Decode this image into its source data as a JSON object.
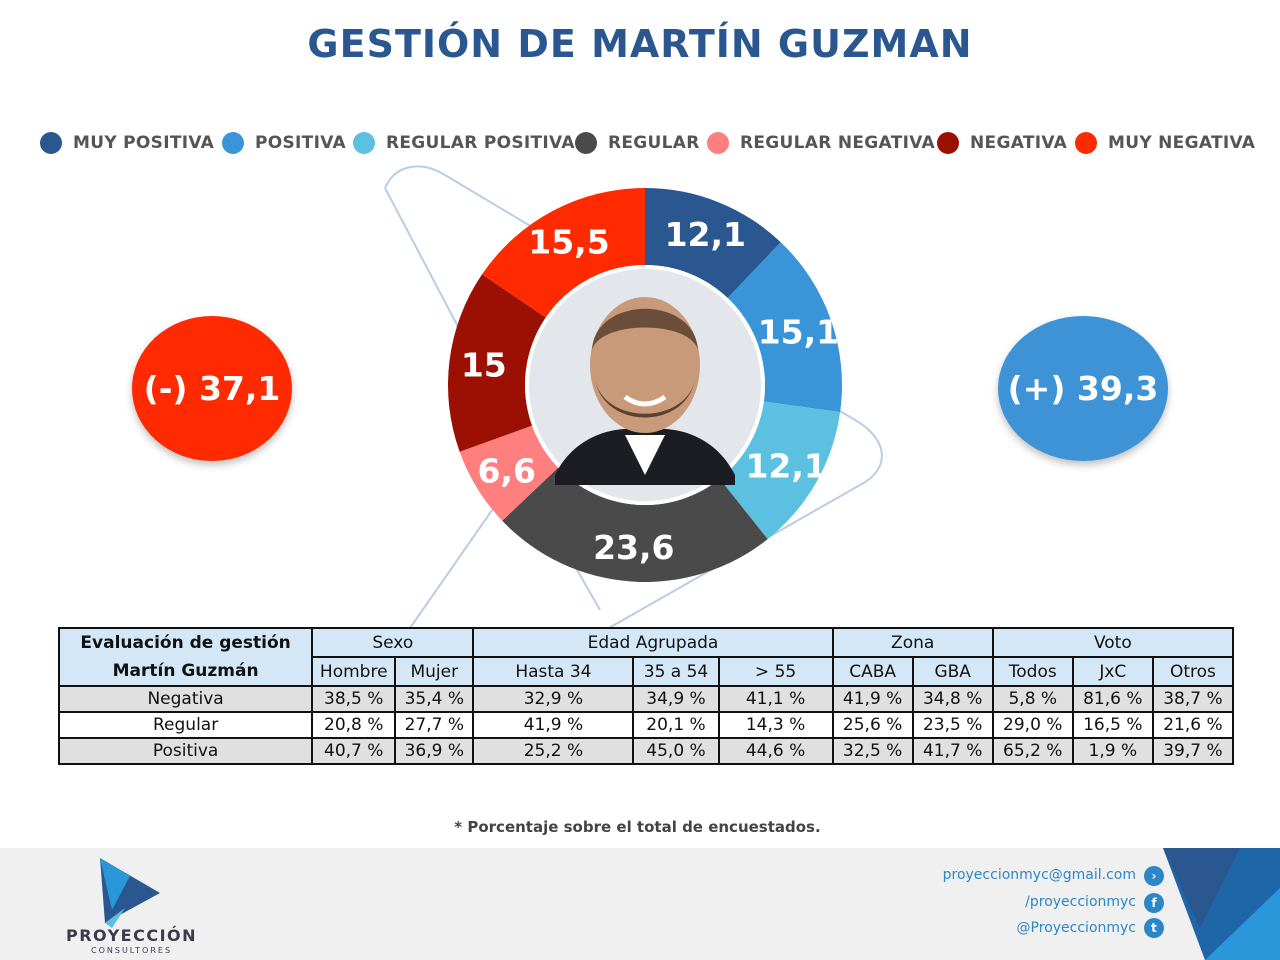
{
  "title": "GESTIÓN DE MARTÍN GUZMAN",
  "legend": [
    {
      "label": "MUY POSITIVA",
      "color": "#2a5790"
    },
    {
      "label": "POSITIVA",
      "color": "#3a95d8"
    },
    {
      "label": "REGULAR POSITIVA",
      "color": "#5cc0e0"
    },
    {
      "label": "REGULAR",
      "color": "#4a4a4a"
    },
    {
      "label": "REGULAR NEGATIVA",
      "color": "#ff7f7f"
    },
    {
      "label": "NEGATIVA",
      "color": "#9c1003"
    },
    {
      "label": "MUY NEGATIVA",
      "color": "#ff2a00"
    }
  ],
  "summary": {
    "negative_label": "(-) 37,1",
    "positive_label": "(+) 39,3"
  },
  "chart_data": {
    "type": "pie",
    "variant": "donut",
    "center_image": "portrait-photo",
    "categories": [
      "MUY POSITIVA",
      "POSITIVA",
      "REGULAR POSITIVA",
      "REGULAR",
      "REGULAR NEGATIVA",
      "NEGATIVA",
      "MUY NEGATIVA"
    ],
    "values": [
      12.1,
      15.1,
      12.1,
      23.6,
      6.6,
      15,
      15.5
    ],
    "value_labels": [
      "12,1",
      "15,1",
      "12,1",
      "23,6",
      "6,6",
      "15",
      "15,5"
    ],
    "colors": [
      "#2a5790",
      "#3a95d8",
      "#5cc0e0",
      "#4a4a4a",
      "#ff7f7f",
      "#9c1003",
      "#ff2a00"
    ]
  },
  "table": {
    "corner_line1": "Evaluación de gestión",
    "corner_line2": "Martín Guzmán",
    "groups": [
      {
        "label": "Sexo",
        "span": 2
      },
      {
        "label": "Edad Agrupada",
        "span": 3
      },
      {
        "label": "Zona",
        "span": 2
      },
      {
        "label": "Voto",
        "span": 3
      }
    ],
    "columns": [
      "Hombre",
      "Mujer",
      "Hasta 34",
      "35 a 54",
      "> 55",
      "CABA",
      "GBA",
      "Todos",
      "JxC",
      "Otros"
    ],
    "rows": [
      {
        "label": "Negativa",
        "values": [
          "38,5 %",
          "35,4 %",
          "32,9 %",
          "34,9 %",
          "41,1 %",
          "41,9 %",
          "34,8 %",
          "5,8 %",
          "81,6 %",
          "38,7 %"
        ]
      },
      {
        "label": "Regular",
        "values": [
          "20,8 %",
          "27,7 %",
          "41,9 %",
          "20,1 %",
          "14,3 %",
          "25,6 %",
          "23,5 %",
          "29,0 %",
          "16,5 %",
          "21,6 %"
        ]
      },
      {
        "label": "Positiva",
        "values": [
          "40,7 %",
          "36,9 %",
          "25,2 %",
          "45,0 %",
          "44,6 %",
          "32,5 %",
          "41,7 %",
          "65,2 %",
          "1,9 %",
          "39,7 %"
        ]
      }
    ]
  },
  "note": "* Porcentaje sobre el total de encuestados.",
  "footer": {
    "brand_name": "PROYECCIÓN",
    "brand_sub": "CONSULTORES",
    "email": "proyeccionmyc@gmail.com",
    "facebook": "/proyeccionmyc",
    "twitter": "@Proyeccionmyc"
  }
}
